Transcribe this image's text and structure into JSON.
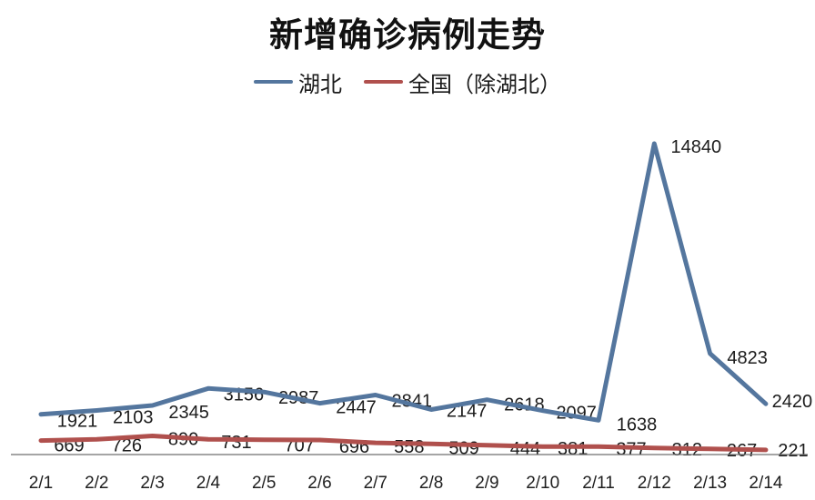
{
  "page": {
    "background": "#ffffff"
  },
  "chart_data": {
    "type": "line",
    "title": "新增确诊病例走势",
    "categories": [
      "2/1",
      "2/2",
      "2/3",
      "2/4",
      "2/5",
      "2/6",
      "2/7",
      "2/8",
      "2/9",
      "2/10",
      "2/11",
      "2/12",
      "2/13",
      "2/14"
    ],
    "series": [
      {
        "name": "湖北",
        "color": "#54769E",
        "values": [
          1921,
          2103,
          2345,
          3156,
          2987,
          2447,
          2841,
          2147,
          2618,
          2097,
          1638,
          14840,
          4823,
          2420
        ]
      },
      {
        "name": "全国（除湖北）",
        "color": "#B0504D",
        "values": [
          669,
          726,
          890,
          731,
          707,
          696,
          558,
          509,
          444,
          381,
          377,
          312,
          267,
          221
        ]
      }
    ],
    "xlabel": "",
    "ylabel": "",
    "ylim": [
      0,
      15000
    ],
    "grid": false,
    "legend_position": "top-center",
    "data_labels_shown": true,
    "axis_line_color": "#6f6f6f",
    "label_color": "#1c1c1c"
  }
}
